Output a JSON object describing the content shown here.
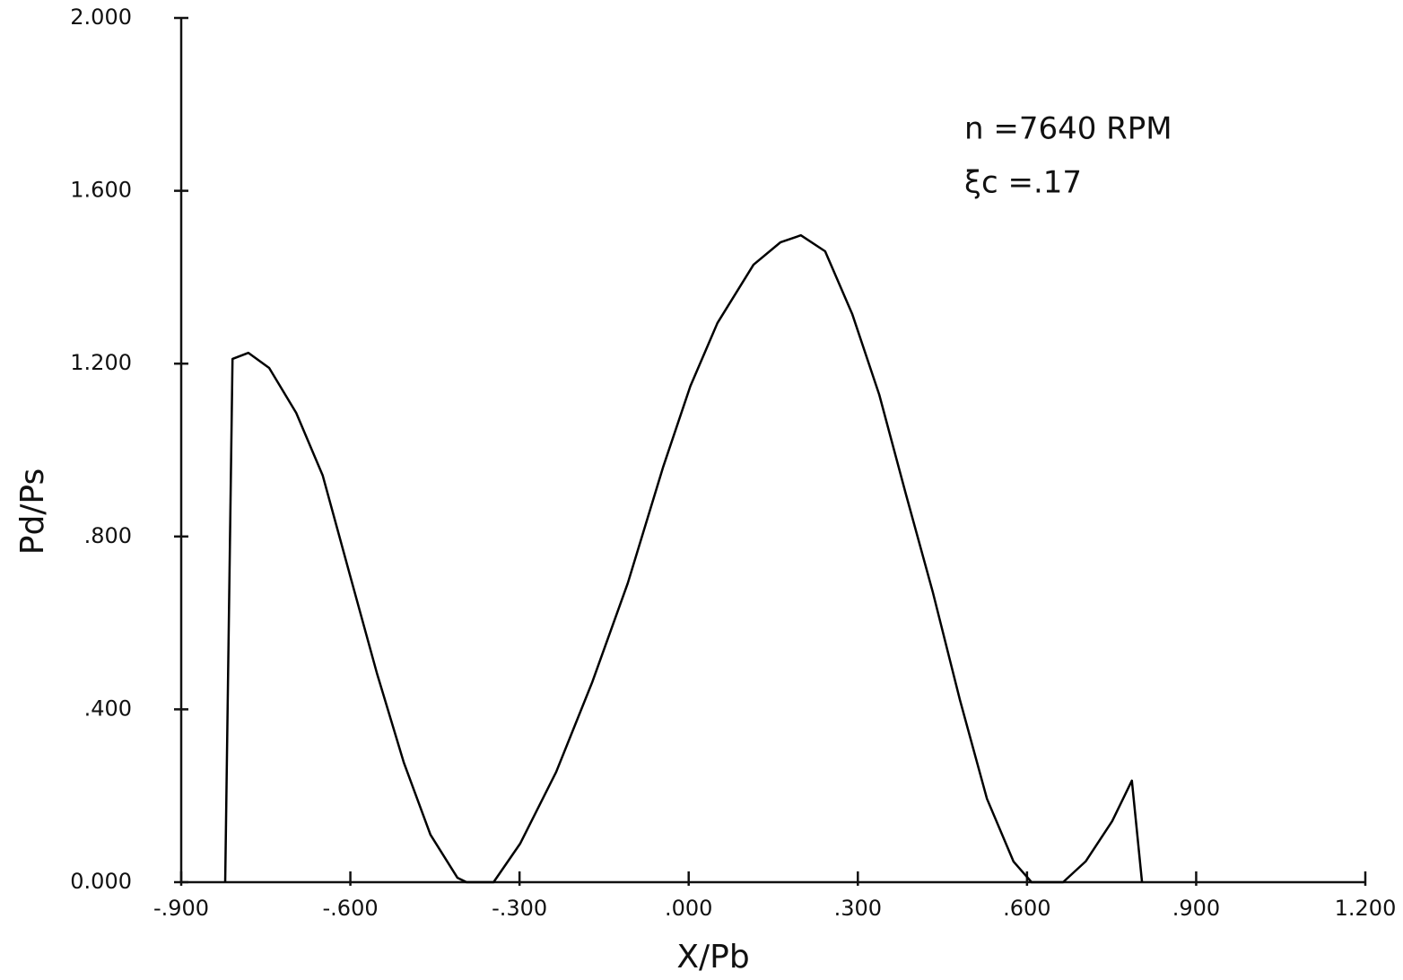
{
  "chart_data": {
    "type": "line",
    "xlabel": "X/Pb",
    "ylabel": "Pd/Ps",
    "annotations": [
      "n  =7640 RPM",
      "ξc =.17"
    ],
    "series": [
      {
        "color": "#000000",
        "x": [
          -0.822,
          -0.809,
          -0.781,
          -0.744,
          -0.696,
          -0.649,
          -0.601,
          -0.553,
          -0.505,
          -0.458,
          -0.41,
          -0.394,
          -0.346,
          -0.299,
          -0.235,
          -0.171,
          -0.108,
          -0.045,
          0.003,
          0.051,
          0.115,
          0.163,
          0.199,
          0.242,
          0.29,
          0.338,
          0.385,
          0.433,
          0.481,
          0.529,
          0.576,
          0.608,
          0.664,
          0.704,
          0.751,
          0.786,
          0.804
        ],
        "values": [
          0,
          1.211,
          1.225,
          1.19,
          1.086,
          0.941,
          0.712,
          0.484,
          0.276,
          0.11,
          0.01,
          0,
          0,
          0.089,
          0.255,
          0.463,
          0.692,
          0.962,
          1.148,
          1.294,
          1.429,
          1.481,
          1.497,
          1.46,
          1.315,
          1.128,
          0.899,
          0.671,
          0.422,
          0.193,
          0.048,
          0,
          0,
          0.048,
          0.141,
          0.235,
          0
        ]
      }
    ],
    "xlim": [
      -0.9,
      1.2
    ],
    "xticks": [
      {
        "value": -0.9,
        "label": "-.900"
      },
      {
        "value": -0.6,
        "label": "-.600"
      },
      {
        "value": -0.3,
        "label": "-.300"
      },
      {
        "value": 0,
        "label": ".000"
      },
      {
        "value": 0.3,
        "label": ".300"
      },
      {
        "value": 0.6,
        "label": ".600"
      },
      {
        "value": 0.9,
        "label": ".900"
      },
      {
        "value": 1.2,
        "label": "1.200"
      }
    ],
    "ylim": [
      0,
      2.0
    ],
    "yticks": [
      {
        "value": 0,
        "label": "0.000"
      },
      {
        "value": 0.4,
        "label": ".400"
      },
      {
        "value": 0.8,
        "label": ".800"
      },
      {
        "value": 1.2,
        "label": "1.200"
      },
      {
        "value": 1.6,
        "label": "1.600"
      },
      {
        "value": 2.0,
        "label": "2.000"
      }
    ],
    "grid": false
  }
}
